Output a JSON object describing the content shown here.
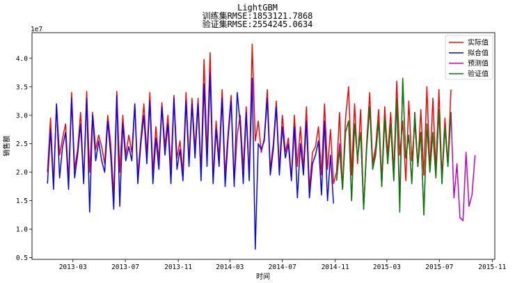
{
  "chart_data": {
    "type": "line",
    "title": "LightGBM",
    "subtitle_lines": [
      "训练集RMSE:1853121.7868",
      "验证集RMSE:2554245.0634"
    ],
    "xlabel": "时间",
    "ylabel": "销售额",
    "y_offset_label": "1e7",
    "ylim": [
      0.47,
      4.45
    ],
    "xlim": [
      "2012-11-26",
      "2015-11-07"
    ],
    "x_ticks": [
      {
        "date": "2013-03-01",
        "label": "2013-03"
      },
      {
        "date": "2013-07-01",
        "label": "2013-07"
      },
      {
        "date": "2013-11-01",
        "label": "2013-11"
      },
      {
        "date": "2014-03-01",
        "label": "2014-03"
      },
      {
        "date": "2014-07-01",
        "label": "2014-07"
      },
      {
        "date": "2014-11-01",
        "label": "2014-11"
      },
      {
        "date": "2015-03-01",
        "label": "2015-03"
      },
      {
        "date": "2015-07-01",
        "label": "2015-07"
      },
      {
        "date": "2015-11-01",
        "label": "2015-11"
      }
    ],
    "y_ticks": [
      {
        "value": 0.5,
        "label": "0.5"
      },
      {
        "value": 1.0,
        "label": "1.0"
      },
      {
        "value": 1.5,
        "label": "1.5"
      },
      {
        "value": 2.0,
        "label": "2.0"
      },
      {
        "value": 2.5,
        "label": "2.5"
      },
      {
        "value": 3.0,
        "label": "3.0"
      },
      {
        "value": 3.5,
        "label": "3.5"
      },
      {
        "value": 4.0,
        "label": "4.0"
      }
    ],
    "legend_position": "top-right",
    "grid": false,
    "series": [
      {
        "name": "实际值",
        "color": "#ff0000",
        "x": [
          "2013-01-01",
          "2013-01-08",
          "2013-01-15",
          "2013-01-22",
          "2013-01-29",
          "2013-02-05",
          "2013-02-12",
          "2013-02-19",
          "2013-02-26",
          "2013-03-05",
          "2013-03-12",
          "2013-03-19",
          "2013-03-26",
          "2013-04-02",
          "2013-04-09",
          "2013-04-16",
          "2013-04-23",
          "2013-04-30",
          "2013-05-07",
          "2013-05-14",
          "2013-05-21",
          "2013-05-28",
          "2013-06-04",
          "2013-06-11",
          "2013-06-18",
          "2013-06-25",
          "2013-07-02",
          "2013-07-09",
          "2013-07-16",
          "2013-07-23",
          "2013-07-30",
          "2013-08-06",
          "2013-08-13",
          "2013-08-20",
          "2013-08-27",
          "2013-09-03",
          "2013-09-10",
          "2013-09-17",
          "2013-09-24",
          "2013-10-01",
          "2013-10-08",
          "2013-10-15",
          "2013-10-22",
          "2013-10-29",
          "2013-11-05",
          "2013-11-12",
          "2013-11-19",
          "2013-11-26",
          "2013-12-03",
          "2013-12-10",
          "2013-12-17",
          "2013-12-24",
          "2013-12-31",
          "2014-01-07",
          "2014-01-14",
          "2014-01-21",
          "2014-01-28",
          "2014-02-04",
          "2014-02-11",
          "2014-02-18",
          "2014-02-25",
          "2014-03-04",
          "2014-03-11",
          "2014-03-18",
          "2014-03-25",
          "2014-04-01",
          "2014-04-08",
          "2014-04-15",
          "2014-04-22",
          "2014-04-29",
          "2014-05-06",
          "2014-05-13",
          "2014-05-20",
          "2014-05-27",
          "2014-06-03",
          "2014-06-10",
          "2014-06-17",
          "2014-06-24",
          "2014-07-01",
          "2014-07-08",
          "2014-07-15",
          "2014-07-22",
          "2014-07-29",
          "2014-08-05",
          "2014-08-12",
          "2014-08-19",
          "2014-08-26",
          "2014-09-02",
          "2014-09-09",
          "2014-09-16",
          "2014-09-23",
          "2014-09-30",
          "2014-10-07",
          "2014-10-14",
          "2014-10-21",
          "2014-10-28",
          "2014-11-04",
          "2014-11-11",
          "2014-11-18",
          "2014-11-25",
          "2014-12-02",
          "2014-12-09",
          "2014-12-16",
          "2014-12-23",
          "2014-12-30",
          "2015-01-06",
          "2015-01-13",
          "2015-01-20",
          "2015-01-27",
          "2015-02-03",
          "2015-02-10",
          "2015-02-17",
          "2015-02-24",
          "2015-03-03",
          "2015-03-10",
          "2015-03-17",
          "2015-03-24",
          "2015-03-31",
          "2015-04-07",
          "2015-04-14",
          "2015-04-21",
          "2015-04-28",
          "2015-05-05",
          "2015-05-12",
          "2015-05-19",
          "2015-05-26",
          "2015-06-02",
          "2015-06-09",
          "2015-06-16",
          "2015-06-23",
          "2015-06-30",
          "2015-07-07",
          "2015-07-14",
          "2015-07-21",
          "2015-07-28"
        ],
        "values": [
          2.0,
          2.95,
          1.8,
          3.2,
          2.3,
          2.6,
          2.85,
          1.85,
          3.4,
          2.05,
          2.4,
          3.05,
          1.85,
          3.42,
          2.0,
          3.05,
          2.4,
          2.65,
          2.45,
          2.15,
          3.0,
          2.5,
          1.6,
          3.42,
          2.0,
          3.0,
          2.3,
          2.65,
          2.35,
          3.2,
          1.95,
          2.6,
          3.2,
          2.3,
          3.4,
          2.0,
          2.8,
          2.2,
          3.22,
          2.45,
          3.0,
          2.05,
          3.35,
          2.25,
          2.55,
          2.0,
          3.4,
          2.2,
          3.3,
          2.4,
          3.3,
          2.0,
          3.98,
          2.3,
          4.1,
          1.9,
          2.9,
          2.25,
          3.45,
          1.95,
          2.7,
          3.35,
          1.8,
          2.65,
          3.0,
          2.05,
          3.15,
          1.9,
          4.25,
          2.55,
          2.9,
          2.35,
          2.6,
          3.45,
          2.05,
          2.5,
          3.25,
          2.05,
          3.0,
          2.35,
          2.6,
          1.9,
          3.0,
          2.1,
          2.8,
          2.05,
          3.15,
          1.7,
          2.35,
          2.45,
          2.8,
          1.95,
          3.2,
          2.05,
          2.75,
          1.8,
          2.0,
          3.05,
          1.7,
          2.95,
          3.5,
          1.95,
          3.2,
          2.15,
          3.1,
          1.35,
          2.5,
          3.4,
          2.15,
          2.45,
          3.1,
          1.85,
          3.15,
          2.3,
          3.05,
          2.0,
          3.6,
          2.3,
          2.9,
          1.85,
          3.25,
          2.2,
          2.85,
          2.1,
          3.1,
          1.95,
          3.5,
          2.05,
          3.3,
          2.05,
          3.45,
          1.9,
          2.95,
          2.15,
          3.45
        ]
      },
      {
        "name": "拟合值",
        "color": "#0000ff",
        "x": [
          "2013-01-01",
          "2013-01-08",
          "2013-01-15",
          "2013-01-22",
          "2013-01-29",
          "2013-02-05",
          "2013-02-12",
          "2013-02-19",
          "2013-02-26",
          "2013-03-05",
          "2013-03-12",
          "2013-03-19",
          "2013-03-26",
          "2013-04-02",
          "2013-04-09",
          "2013-04-16",
          "2013-04-23",
          "2013-04-30",
          "2013-05-07",
          "2013-05-14",
          "2013-05-21",
          "2013-05-28",
          "2013-06-04",
          "2013-06-11",
          "2013-06-18",
          "2013-06-25",
          "2013-07-02",
          "2013-07-09",
          "2013-07-16",
          "2013-07-23",
          "2013-07-30",
          "2013-08-06",
          "2013-08-13",
          "2013-08-20",
          "2013-08-27",
          "2013-09-03",
          "2013-09-10",
          "2013-09-17",
          "2013-09-24",
          "2013-10-01",
          "2013-10-08",
          "2013-10-15",
          "2013-10-22",
          "2013-10-29",
          "2013-11-05",
          "2013-11-12",
          "2013-11-19",
          "2013-11-26",
          "2013-12-03",
          "2013-12-10",
          "2013-12-17",
          "2013-12-24",
          "2013-12-31",
          "2014-01-07",
          "2014-01-14",
          "2014-01-21",
          "2014-01-28",
          "2014-02-04",
          "2014-02-11",
          "2014-02-18",
          "2014-02-25",
          "2014-03-04",
          "2014-03-11",
          "2014-03-18",
          "2014-03-25",
          "2014-04-01",
          "2014-04-08",
          "2014-04-15",
          "2014-04-22",
          "2014-04-29",
          "2014-05-06",
          "2014-05-13",
          "2014-05-20",
          "2014-05-27",
          "2014-06-03",
          "2014-06-10",
          "2014-06-17",
          "2014-06-24",
          "2014-07-01",
          "2014-07-08",
          "2014-07-15",
          "2014-07-22",
          "2014-07-29",
          "2014-08-05",
          "2014-08-12",
          "2014-08-19",
          "2014-08-26",
          "2014-09-02",
          "2014-09-09",
          "2014-09-16",
          "2014-09-23",
          "2014-09-30",
          "2014-10-07",
          "2014-10-14",
          "2014-10-21",
          "2014-10-28"
        ],
        "values": [
          1.8,
          2.75,
          1.7,
          3.2,
          1.9,
          2.45,
          2.7,
          1.7,
          3.3,
          1.9,
          2.3,
          2.85,
          1.8,
          3.3,
          1.3,
          3.0,
          2.2,
          2.55,
          2.2,
          2.0,
          2.9,
          2.3,
          1.35,
          3.35,
          1.4,
          2.85,
          2.2,
          2.45,
          2.2,
          3.2,
          1.8,
          2.5,
          3.0,
          2.15,
          3.25,
          1.8,
          2.6,
          2.05,
          3.15,
          2.3,
          2.85,
          1.8,
          3.3,
          2.05,
          2.4,
          1.85,
          3.25,
          2.1,
          3.2,
          2.25,
          3.2,
          1.85,
          3.55,
          2.1,
          3.75,
          1.8,
          2.75,
          2.1,
          3.3,
          1.75,
          2.6,
          3.25,
          1.75,
          3.4,
          2.85,
          1.8,
          3.05,
          1.85,
          3.65,
          0.65,
          2.5,
          2.4,
          2.55,
          3.3,
          1.95,
          2.4,
          3.15,
          1.95,
          2.8,
          2.25,
          2.5,
          1.85,
          2.8,
          1.55,
          2.5,
          1.95,
          2.9,
          1.55,
          2.15,
          2.3,
          2.55,
          1.6,
          2.9,
          1.5,
          2.3,
          1.45
        ]
      },
      {
        "name": "预测值",
        "color": "#bf00bf",
        "x": [
          "2014-11-04",
          "2014-11-11",
          "2014-11-18",
          "2014-11-25",
          "2014-12-02",
          "2014-12-09",
          "2014-12-16",
          "2014-12-23",
          "2014-12-30",
          "2015-01-06",
          "2015-01-13",
          "2015-01-20",
          "2015-01-27",
          "2015-02-03",
          "2015-02-10",
          "2015-02-17",
          "2015-02-24",
          "2015-03-03",
          "2015-03-10",
          "2015-03-17",
          "2015-03-24",
          "2015-03-31",
          "2015-04-07",
          "2015-04-14",
          "2015-04-21",
          "2015-04-28",
          "2015-05-05",
          "2015-05-12",
          "2015-05-19",
          "2015-05-26",
          "2015-06-02",
          "2015-06-09",
          "2015-06-16",
          "2015-06-23",
          "2015-06-30",
          "2015-07-07",
          "2015-07-14",
          "2015-07-21",
          "2015-07-28",
          "2015-08-04",
          "2015-08-11",
          "2015-08-18",
          "2015-08-25",
          "2015-09-01",
          "2015-09-08",
          "2015-09-15",
          "2015-09-22"
        ],
        "values": [
          1.85,
          2.5,
          1.7,
          2.7,
          2.9,
          1.5,
          2.85,
          2.25,
          2.7,
          1.35,
          2.4,
          3.15,
          2.05,
          2.35,
          2.9,
          1.75,
          2.95,
          2.15,
          2.85,
          1.85,
          3.3,
          1.55,
          3.6,
          2.25,
          2.65,
          1.8,
          3.05,
          2.1,
          2.7,
          1.25,
          2.85,
          2.0,
          2.7,
          1.9,
          3.1,
          1.8,
          2.8,
          2.1,
          3.05,
          1.55,
          2.15,
          1.2,
          1.15,
          2.35,
          1.4,
          1.6,
          2.3
        ]
      },
      {
        "name": "验证值",
        "color": "#008000",
        "x": [
          "2014-11-04",
          "2014-11-11",
          "2014-11-18",
          "2014-11-25",
          "2014-12-02",
          "2014-12-09",
          "2014-12-16",
          "2014-12-23",
          "2014-12-30",
          "2015-01-06",
          "2015-01-13",
          "2015-01-20",
          "2015-01-27",
          "2015-02-03",
          "2015-02-10",
          "2015-02-17",
          "2015-02-24",
          "2015-03-03",
          "2015-03-10",
          "2015-03-17",
          "2015-03-24",
          "2015-03-31",
          "2015-04-07",
          "2015-04-14",
          "2015-04-21",
          "2015-04-28",
          "2015-05-05",
          "2015-05-12",
          "2015-05-19",
          "2015-05-26",
          "2015-06-02",
          "2015-06-09",
          "2015-06-16",
          "2015-06-23",
          "2015-06-30",
          "2015-07-07",
          "2015-07-14",
          "2015-07-21",
          "2015-07-28"
        ],
        "values": [
          1.85,
          2.4,
          1.7,
          2.7,
          2.9,
          1.5,
          2.85,
          2.25,
          2.7,
          1.35,
          2.4,
          3.15,
          2.05,
          2.3,
          2.9,
          1.75,
          2.95,
          2.15,
          2.85,
          1.85,
          3.3,
          1.3,
          3.65,
          2.25,
          2.65,
          1.8,
          3.05,
          2.1,
          2.7,
          1.25,
          2.85,
          2.0,
          2.7,
          1.9,
          3.1,
          1.8,
          2.8,
          2.1,
          3.05
        ]
      }
    ]
  }
}
